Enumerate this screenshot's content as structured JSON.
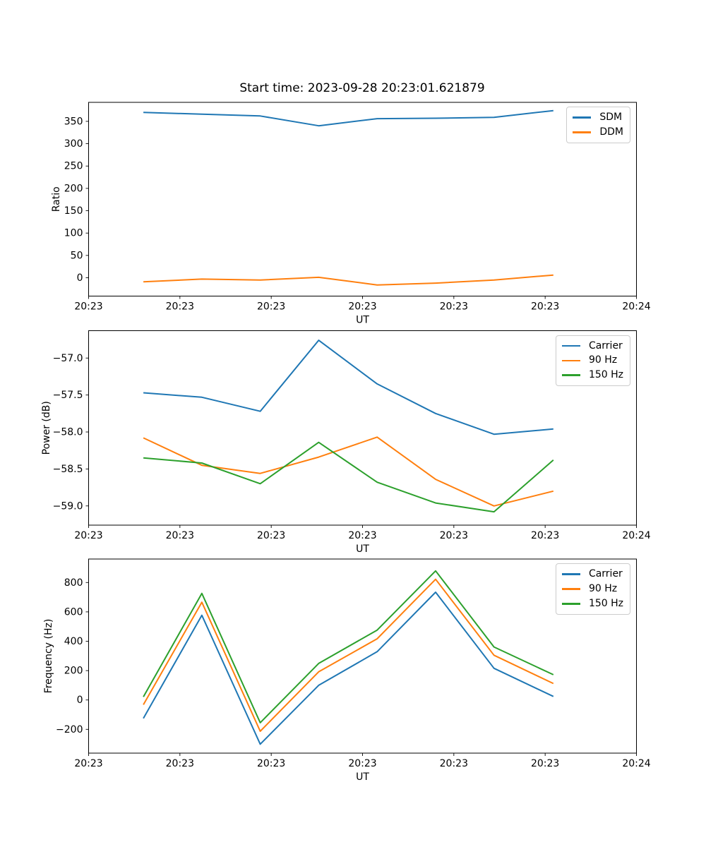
{
  "figure": {
    "title": "Start time: 2023-09-28 20:23:01.621879",
    "background": "#ffffff",
    "text_color": "#000000",
    "spine_color": "#000000"
  },
  "chart_data": [
    {
      "type": "line",
      "name": "ratio-plot",
      "ylabel": "Ratio",
      "xlabel": "UT",
      "grid": false,
      "legend_position": "upper-right",
      "x_seconds": [
        6,
        12.4,
        18.8,
        25.2,
        31.6,
        38,
        44.4,
        50.9
      ],
      "xlim": [
        0,
        60
      ],
      "xticks_seconds": [
        0,
        10,
        20,
        30,
        40,
        50,
        60
      ],
      "xtick_labels": [
        "20:23",
        "20:23",
        "20:23",
        "20:23",
        "20:23",
        "20:23",
        "20:24"
      ],
      "ylim": [
        -41,
        392.5
      ],
      "yticks": [
        0,
        50,
        100,
        150,
        200,
        250,
        300,
        350
      ],
      "ytick_labels": [
        "0",
        "50",
        "100",
        "150",
        "200",
        "250",
        "300",
        "350"
      ],
      "series": [
        {
          "name": "SDM",
          "color": "#1f77b4",
          "values": [
            370,
            366,
            362,
            340,
            356,
            357,
            359,
            374
          ]
        },
        {
          "name": "DDM",
          "color": "#ff7f0e",
          "values": [
            -9,
            -3,
            -5,
            1,
            -16,
            -12,
            -5,
            6
          ]
        }
      ]
    },
    {
      "type": "line",
      "name": "power-plot",
      "ylabel": "Power (dB)",
      "xlabel": "UT",
      "grid": false,
      "legend_position": "upper-right",
      "x_seconds": [
        6,
        12.4,
        18.8,
        25.2,
        31.6,
        38,
        44.4,
        50.9
      ],
      "xlim": [
        0,
        60
      ],
      "xticks_seconds": [
        0,
        10,
        20,
        30,
        40,
        50,
        60
      ],
      "xtick_labels": [
        "20:23",
        "20:23",
        "20:23",
        "20:23",
        "20:23",
        "20:23",
        "20:24"
      ],
      "ylim": [
        -59.26,
        -56.63
      ],
      "yticks": [
        -59.0,
        -58.5,
        -58.0,
        -57.5,
        -57.0
      ],
      "ytick_labels": [
        "−59.0",
        "−58.5",
        "−58.0",
        "−57.5",
        "−57.0"
      ],
      "series": [
        {
          "name": "Carrier",
          "color": "#1f77b4",
          "values": [
            -57.47,
            -57.53,
            -57.72,
            -56.76,
            -57.35,
            -57.75,
            -58.03,
            -57.96
          ]
        },
        {
          "name": "90 Hz",
          "color": "#ff7f0e",
          "values": [
            -58.08,
            -58.45,
            -58.56,
            -58.34,
            -58.07,
            -58.64,
            -59.0,
            -58.8
          ]
        },
        {
          "name": "150 Hz",
          "color": "#2ca02c",
          "values": [
            -58.35,
            -58.42,
            -58.7,
            -58.14,
            -58.68,
            -58.96,
            -59.08,
            -58.38
          ]
        }
      ]
    },
    {
      "type": "line",
      "name": "frequency-plot",
      "ylabel": "Frequency (Hz)",
      "xlabel": "UT",
      "grid": false,
      "legend_position": "upper-right",
      "x_seconds": [
        6,
        12.4,
        18.8,
        25.2,
        31.6,
        38,
        44.4,
        50.9
      ],
      "xlim": [
        0,
        60
      ],
      "xticks_seconds": [
        0,
        10,
        20,
        30,
        40,
        50,
        60
      ],
      "xtick_labels": [
        "20:23",
        "20:23",
        "20:23",
        "20:23",
        "20:23",
        "20:23",
        "20:24"
      ],
      "ylim": [
        -362,
        960
      ],
      "yticks": [
        -200,
        0,
        200,
        400,
        600,
        800
      ],
      "ytick_labels": [
        "−200",
        "0",
        "200",
        "400",
        "600",
        "800"
      ],
      "series": [
        {
          "name": "Carrier",
          "color": "#1f77b4",
          "values": [
            -125,
            577,
            -301,
            100,
            329,
            734,
            216,
            24
          ]
        },
        {
          "name": "90 Hz",
          "color": "#ff7f0e",
          "values": [
            -32,
            666,
            -213,
            192,
            417,
            822,
            305,
            112
          ]
        },
        {
          "name": "150 Hz",
          "color": "#2ca02c",
          "values": [
            21,
            726,
            -155,
            249,
            476,
            879,
            361,
            172
          ]
        }
      ]
    }
  ]
}
